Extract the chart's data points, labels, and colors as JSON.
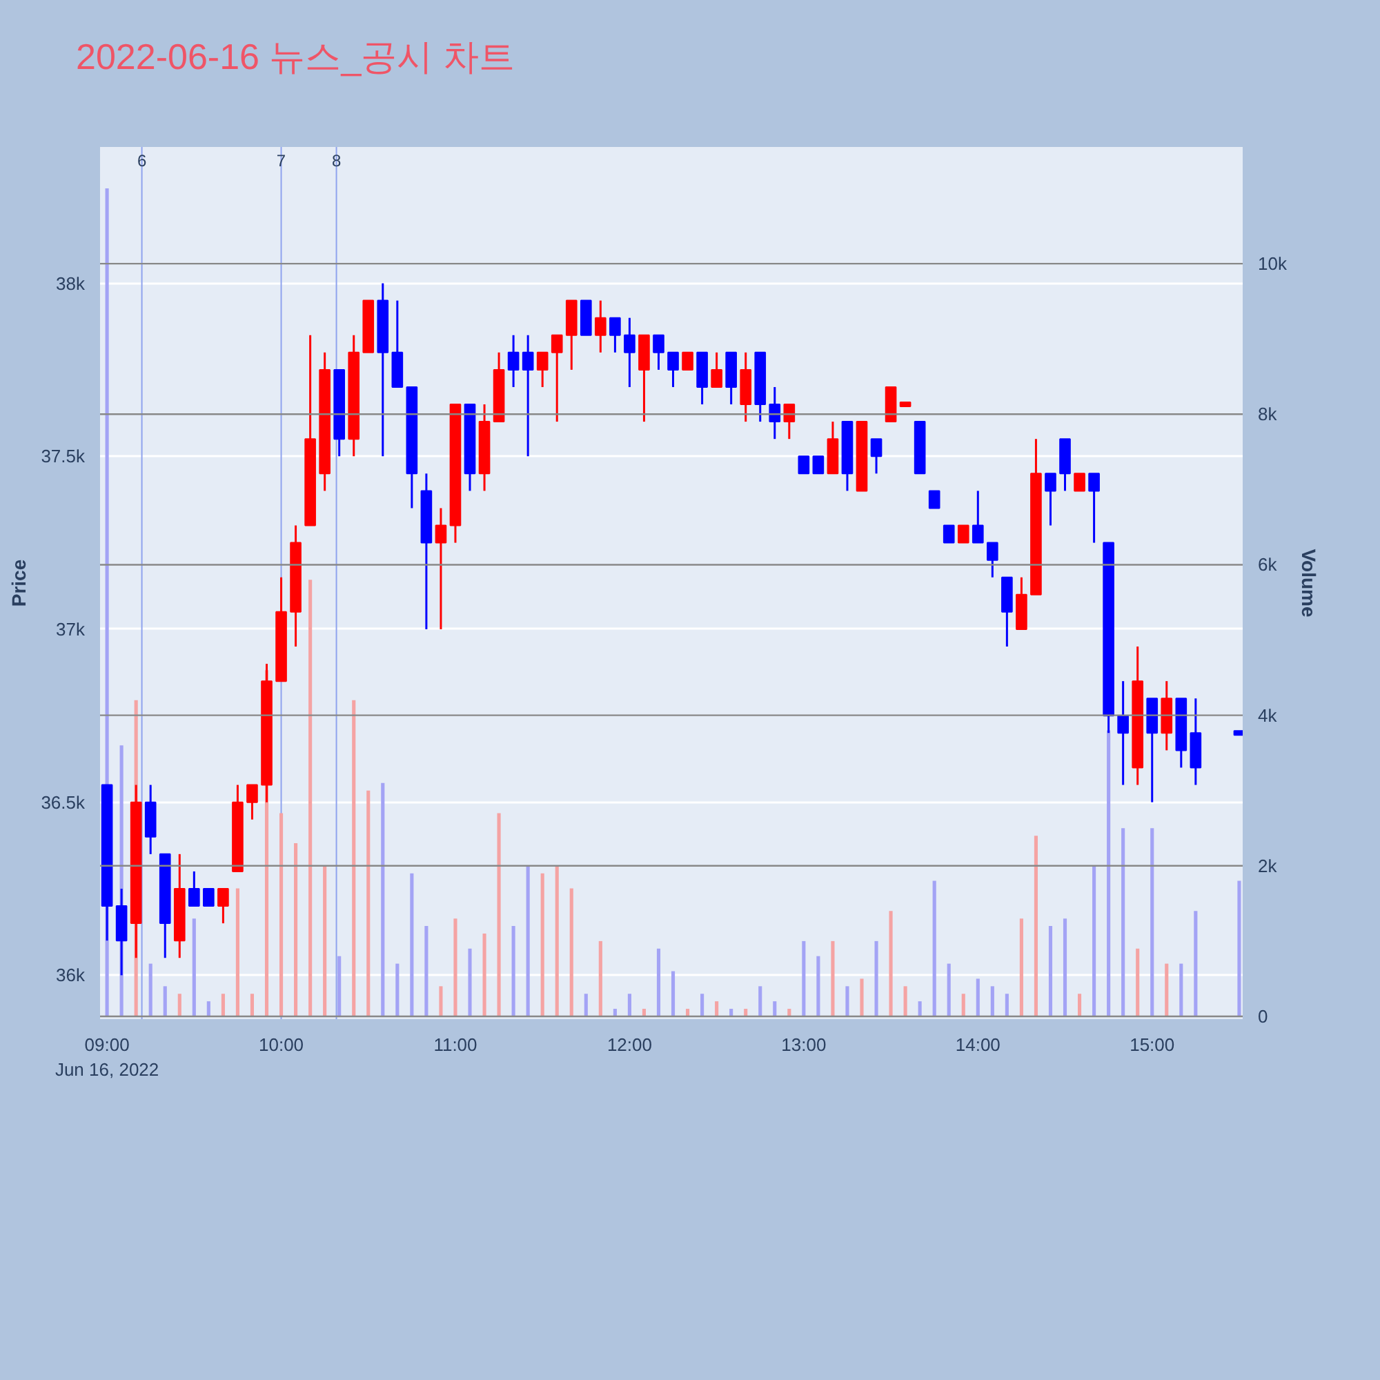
{
  "chart_data": {
    "type": "candlestick",
    "title": "2022-06-16 뉴스_공시 차트",
    "ylabel": "Price",
    "y2label": "Volume",
    "x": [
      9.0,
      9.0833,
      9.1667,
      9.25,
      9.3333,
      9.4167,
      9.5,
      9.5833,
      9.6667,
      9.75,
      9.8333,
      9.9167,
      10.0,
      10.0833,
      10.1667,
      10.25,
      10.3333,
      10.4167,
      10.5,
      10.5833,
      10.6667,
      10.75,
      10.8333,
      10.9167,
      11.0,
      11.0833,
      11.1667,
      11.25,
      11.3333,
      11.4167,
      11.5,
      11.5833,
      11.6667,
      11.75,
      11.8333,
      11.9167,
      12.0,
      12.0833,
      12.1667,
      12.25,
      12.3333,
      12.4167,
      12.5,
      12.5833,
      12.6667,
      12.75,
      12.8333,
      12.9167,
      13.0,
      13.0833,
      13.1667,
      13.25,
      13.3333,
      13.4167,
      13.5,
      13.5833,
      13.6667,
      13.75,
      13.8333,
      13.9167,
      14.0,
      14.0833,
      14.1667,
      14.25,
      14.3333,
      14.4167,
      14.5,
      14.5833,
      14.6667,
      14.75,
      14.8333,
      14.9167,
      15.0,
      15.0833,
      15.1667,
      15.25,
      15.5
    ],
    "series": [
      {
        "ohlc": [
          [
            36550,
            36550,
            36100,
            36200
          ],
          [
            36200,
            36250,
            36000,
            36100
          ],
          [
            36150,
            36550,
            36050,
            36500
          ],
          [
            36500,
            36550,
            36350,
            36400
          ],
          [
            36350,
            36350,
            36050,
            36150
          ],
          [
            36100,
            36350,
            36050,
            36250
          ],
          [
            36250,
            36300,
            36200,
            36200
          ],
          [
            36250,
            36250,
            36200,
            36200
          ],
          [
            36200,
            36250,
            36150,
            36250
          ],
          [
            36300,
            36550,
            36300,
            36500
          ],
          [
            36500,
            36550,
            36450,
            36550
          ],
          [
            36550,
            36900,
            36500,
            36850
          ],
          [
            36850,
            37150,
            36850,
            37050
          ],
          [
            37050,
            37300,
            36950,
            37250
          ],
          [
            37300,
            37850,
            37300,
            37550
          ],
          [
            37450,
            37800,
            37400,
            37750
          ],
          [
            37750,
            37750,
            37500,
            37550
          ],
          [
            37550,
            37850,
            37500,
            37800
          ],
          [
            37800,
            37950,
            37800,
            37950
          ],
          [
            37950,
            38000,
            37500,
            37800
          ],
          [
            37800,
            37950,
            37700,
            37700
          ],
          [
            37700,
            37700,
            37350,
            37450
          ],
          [
            37400,
            37450,
            37000,
            37250
          ],
          [
            37250,
            37350,
            37000,
            37300
          ],
          [
            37300,
            37650,
            37250,
            37650
          ],
          [
            37650,
            37650,
            37400,
            37450
          ],
          [
            37450,
            37650,
            37400,
            37600
          ],
          [
            37600,
            37800,
            37600,
            37750
          ],
          [
            37800,
            37850,
            37700,
            37750
          ],
          [
            37800,
            37850,
            37500,
            37750
          ],
          [
            37750,
            37800,
            37700,
            37800
          ],
          [
            37800,
            37850,
            37600,
            37850
          ],
          [
            37850,
            37950,
            37750,
            37950
          ],
          [
            37950,
            37950,
            37850,
            37850
          ],
          [
            37850,
            37950,
            37800,
            37900
          ],
          [
            37900,
            37900,
            37800,
            37850
          ],
          [
            37850,
            37900,
            37700,
            37800
          ],
          [
            37750,
            37850,
            37600,
            37850
          ],
          [
            37850,
            37850,
            37750,
            37800
          ],
          [
            37800,
            37800,
            37700,
            37750
          ],
          [
            37750,
            37800,
            37750,
            37800
          ],
          [
            37800,
            37800,
            37650,
            37700
          ],
          [
            37700,
            37800,
            37700,
            37750
          ],
          [
            37800,
            37800,
            37650,
            37700
          ],
          [
            37650,
            37800,
            37600,
            37750
          ],
          [
            37800,
            37800,
            37600,
            37650
          ],
          [
            37650,
            37700,
            37550,
            37600
          ],
          [
            37600,
            37650,
            37550,
            37650
          ],
          [
            37500,
            37500,
            37450,
            37450
          ],
          [
            37500,
            37500,
            37450,
            37450
          ],
          [
            37450,
            37600,
            37450,
            37550
          ],
          [
            37600,
            37600,
            37400,
            37450
          ],
          [
            37400,
            37600,
            37400,
            37600
          ],
          [
            37550,
            37550,
            37450,
            37500
          ],
          [
            37600,
            37700,
            37600,
            37700
          ],
          [
            37650,
            37650,
            37650,
            37650
          ],
          [
            37600,
            37600,
            37450,
            37450
          ],
          [
            37400,
            37400,
            37350,
            37350
          ],
          [
            37300,
            37300,
            37250,
            37250
          ],
          [
            37250,
            37300,
            37250,
            37300
          ],
          [
            37300,
            37400,
            37250,
            37250
          ],
          [
            37250,
            37250,
            37150,
            37200
          ],
          [
            37150,
            37150,
            36950,
            37050
          ],
          [
            37000,
            37150,
            37000,
            37100
          ],
          [
            37100,
            37550,
            37100,
            37450
          ],
          [
            37450,
            37450,
            37300,
            37400
          ],
          [
            37550,
            37550,
            37400,
            37450
          ],
          [
            37400,
            37450,
            37400,
            37450
          ],
          [
            37450,
            37450,
            37250,
            37400
          ],
          [
            37250,
            37250,
            36700,
            36750
          ],
          [
            36750,
            36850,
            36550,
            36700
          ],
          [
            36600,
            36950,
            36550,
            36850
          ],
          [
            36800,
            36800,
            36500,
            36700
          ],
          [
            36700,
            36850,
            36650,
            36800
          ],
          [
            36800,
            36800,
            36600,
            36650
          ],
          [
            36700,
            36800,
            36550,
            36600
          ],
          [
            36700,
            36700,
            36700,
            36700
          ]
        ],
        "colors": [
          "#0000ff",
          "#0000ff",
          "#ff0000",
          "#0000ff",
          "#0000ff",
          "#ff0000",
          "#0000ff",
          "#0000ff",
          "#ff0000",
          "#ff0000",
          "#ff0000",
          "#ff0000",
          "#ff0000",
          "#ff0000",
          "#ff0000",
          "#ff0000",
          "#0000ff",
          "#ff0000",
          "#ff0000",
          "#0000ff",
          "#0000ff",
          "#0000ff",
          "#0000ff",
          "#ff0000",
          "#ff0000",
          "#0000ff",
          "#ff0000",
          "#ff0000",
          "#0000ff",
          "#0000ff",
          "#ff0000",
          "#ff0000",
          "#ff0000",
          "#0000ff",
          "#ff0000",
          "#0000ff",
          "#0000ff",
          "#ff0000",
          "#0000ff",
          "#0000ff",
          "#ff0000",
          "#0000ff",
          "#ff0000",
          "#0000ff",
          "#ff0000",
          "#0000ff",
          "#0000ff",
          "#ff0000",
          "#0000ff",
          "#0000ff",
          "#ff0000",
          "#0000ff",
          "#ff0000",
          "#0000ff",
          "#ff0000",
          "#ff0000",
          "#0000ff",
          "#0000ff",
          "#0000ff",
          "#ff0000",
          "#0000ff",
          "#0000ff",
          "#0000ff",
          "#ff0000",
          "#ff0000",
          "#0000ff",
          "#0000ff",
          "#ff0000",
          "#0000ff",
          "#0000ff",
          "#0000ff",
          "#ff0000",
          "#0000ff",
          "#ff0000",
          "#0000ff",
          "#0000ff",
          "#0000ff"
        ]
      },
      {
        "type": "bar",
        "axis": "y2",
        "values": [
          11000,
          3600,
          4200,
          700,
          400,
          300,
          1300,
          200,
          300,
          1700,
          300,
          4600,
          2700,
          2300,
          5800,
          2000,
          800,
          4200,
          3000,
          3100,
          700,
          1900,
          1200,
          400,
          1300,
          900,
          1100,
          2700,
          1200,
          2000,
          1900,
          2000,
          1700,
          300,
          1000,
          100,
          300,
          100,
          900,
          600,
          100,
          300,
          200,
          100,
          100,
          400,
          200,
          100,
          1000,
          800,
          1000,
          400,
          500,
          1000,
          1400,
          400,
          200,
          1800,
          700,
          300,
          500,
          400,
          300,
          1300,
          2400,
          1200,
          1300,
          300,
          2000,
          3800,
          2500,
          900,
          2500,
          700,
          700,
          1400,
          1800
        ],
        "colors": [
          "#a3a3f5",
          "#a3a3f5",
          "#f5a3a3",
          "#a3a3f5",
          "#a3a3f5",
          "#f5a3a3",
          "#a3a3f5",
          "#a3a3f5",
          "#f5a3a3",
          "#f5a3a3",
          "#f5a3a3",
          "#f5a3a3",
          "#f5a3a3",
          "#f5a3a3",
          "#f5a3a3",
          "#f5a3a3",
          "#a3a3f5",
          "#f5a3a3",
          "#f5a3a3",
          "#a3a3f5",
          "#a3a3f5",
          "#a3a3f5",
          "#a3a3f5",
          "#f5a3a3",
          "#f5a3a3",
          "#a3a3f5",
          "#f5a3a3",
          "#f5a3a3",
          "#a3a3f5",
          "#a3a3f5",
          "#f5a3a3",
          "#f5a3a3",
          "#f5a3a3",
          "#a3a3f5",
          "#f5a3a3",
          "#a3a3f5",
          "#a3a3f5",
          "#f5a3a3",
          "#a3a3f5",
          "#a3a3f5",
          "#f5a3a3",
          "#a3a3f5",
          "#f5a3a3",
          "#a3a3f5",
          "#f5a3a3",
          "#a3a3f5",
          "#a3a3f5",
          "#f5a3a3",
          "#a3a3f5",
          "#a3a3f5",
          "#f5a3a3",
          "#a3a3f5",
          "#f5a3a3",
          "#a3a3f5",
          "#f5a3a3",
          "#f5a3a3",
          "#a3a3f5",
          "#a3a3f5",
          "#a3a3f5",
          "#f5a3a3",
          "#a3a3f5",
          "#a3a3f5",
          "#a3a3f5",
          "#f5a3a3",
          "#f5a3a3",
          "#a3a3f5",
          "#a3a3f5",
          "#f5a3a3",
          "#a3a3f5",
          "#a3a3f5",
          "#a3a3f5",
          "#f5a3a3",
          "#a3a3f5",
          "#f5a3a3",
          "#a3a3f5",
          "#a3a3f5",
          "#a3a3f5"
        ]
      }
    ],
    "xlim": [
      8.96,
      15.52
    ],
    "xticks": [
      {
        "value": 9,
        "label": "09:00\nJun 16, 2022"
      },
      {
        "value": 10,
        "label": "10:00"
      },
      {
        "value": 11,
        "label": "11:00"
      },
      {
        "value": 12,
        "label": "12:00"
      },
      {
        "value": 13,
        "label": "13:00"
      },
      {
        "value": 14,
        "label": "14:00"
      },
      {
        "value": 15,
        "label": "15:00"
      }
    ],
    "ylim": [
      35873,
      38394
    ],
    "yticks": [
      {
        "value": 36000,
        "label": "36k"
      },
      {
        "value": 36500,
        "label": "36.5k"
      },
      {
        "value": 37000,
        "label": "37k"
      },
      {
        "value": 37500,
        "label": "37.5k"
      },
      {
        "value": 38000,
        "label": "38k"
      }
    ],
    "y2lim": [
      -37,
      11550
    ],
    "y2ticks": [
      0,
      {
        "value": 2000,
        "label": "2k"
      },
      {
        "value": 4000,
        "label": "4k"
      },
      {
        "value": 6000,
        "label": "6k"
      },
      {
        "value": 8000,
        "label": "8k"
      },
      {
        "value": 10000,
        "label": "10k"
      }
    ],
    "ref_lines": [
      {
        "axis": "x",
        "value": 9.2,
        "color": "#8fa3ee"
      },
      {
        "axis": "x",
        "value": 10.0,
        "color": "#8fa3ee"
      },
      {
        "axis": "x",
        "value": 10.317,
        "color": "#8fa3ee"
      }
    ],
    "annotations": [
      {
        "text": "6",
        "x": 9.2
      },
      {
        "text": "7",
        "x": 10.0
      },
      {
        "text": "8",
        "x": 10.317
      }
    ],
    "grid": "y"
  }
}
